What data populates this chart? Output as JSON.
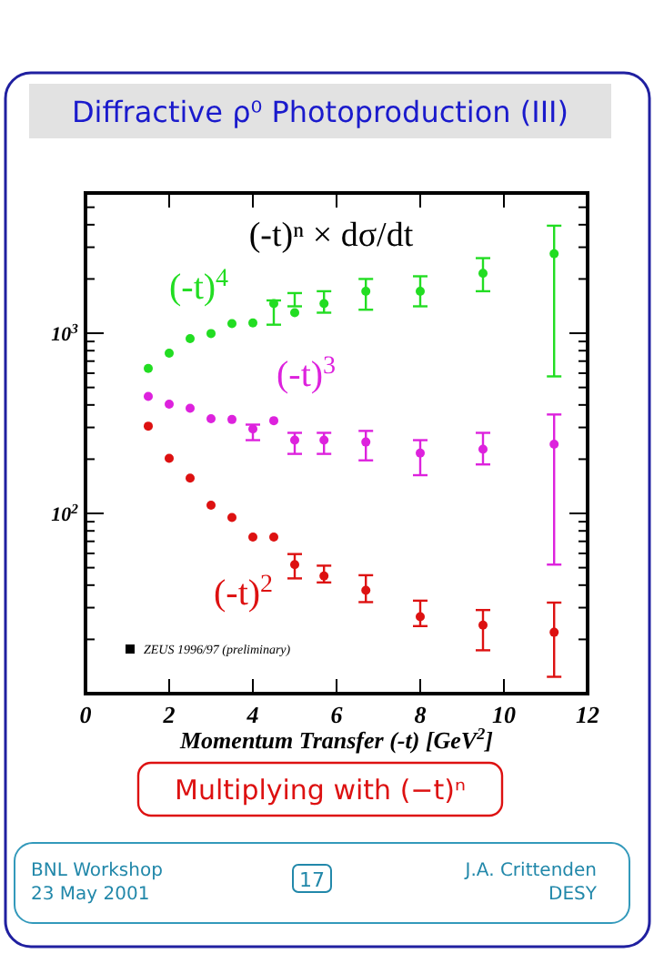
{
  "chart_data": {
    "type": "scatter",
    "title": "Diffractive ρ⁰ Photoproduction (III)",
    "subtitle": "(-t)ⁿ × dσ/dt",
    "xlabel": "Momentum Transfer (-t) [GeV$^{2}$]",
    "x": [
      1.5,
      2.0,
      2.5,
      3.0,
      3.5,
      4.0,
      4.5,
      5.0,
      5.7,
      6.7,
      8.0,
      9.5,
      11.2
    ],
    "series": [
      {
        "name": "(-t)$^{4}$",
        "color": "#22dd22",
        "values": [
          638,
          774,
          933,
          996,
          1130,
          1140,
          1460,
          1300,
          1460,
          1710,
          1710,
          2150,
          2760
        ],
        "errors": [
          null,
          null,
          null,
          null,
          null,
          null,
          [
            1115,
            1520
          ],
          [
            1410,
            1670
          ],
          [
            1300,
            1710
          ],
          [
            1350,
            2000
          ],
          [
            1410,
            2070
          ],
          [
            1710,
            2610
          ],
          [
            576,
            3950
          ]
        ]
      },
      {
        "name": "(-t)$^{3}$",
        "color": "#dd22dd",
        "values": [
          446,
          404,
          383,
          335,
          332,
          294,
          327,
          255,
          255,
          249,
          216,
          227,
          242
        ],
        "errors": [
          null,
          null,
          null,
          null,
          null,
          [
            255,
            311
          ],
          null,
          [
            214,
            280
          ],
          [
            214,
            280
          ],
          [
            197,
            287
          ],
          [
            163,
            255
          ],
          [
            187,
            280
          ],
          [
            52,
            354
          ]
        ]
      },
      {
        "name": "(-t)$^{2}$",
        "color": "#dd1111",
        "values": [
          305,
          202,
          157,
          111,
          95,
          74,
          74,
          52,
          45,
          37.4,
          26.7,
          24,
          21.9
        ],
        "errors": [
          null,
          null,
          null,
          null,
          null,
          null,
          null,
          [
            43.6,
            59.5
          ],
          [
            41.4,
            51.3
          ],
          [
            32.2,
            45.4
          ],
          [
            23.7,
            32.8
          ],
          [
            17.4,
            29.1
          ],
          [
            12.4,
            32
          ]
        ]
      }
    ],
    "marker": "circle",
    "log": "y",
    "xlim": [
      0,
      12
    ],
    "xticks": [
      0,
      2,
      4,
      6,
      8,
      10,
      12
    ],
    "ylim": [
      10,
      6000
    ],
    "yticks": [
      {
        "value": 20,
        "label": null
      },
      {
        "value": 30,
        "label": null
      },
      {
        "value": 40,
        "label": null
      },
      {
        "value": 50,
        "label": null
      },
      {
        "value": 60,
        "label": null
      },
      {
        "value": 70,
        "label": null
      },
      {
        "value": 80,
        "label": null
      },
      {
        "value": 90,
        "label": null
      },
      {
        "value": 100,
        "label": "10$^{2}$"
      },
      {
        "value": 200,
        "label": null
      },
      {
        "value": 300,
        "label": null
      },
      {
        "value": 400,
        "label": null
      },
      {
        "value": 500,
        "label": null
      },
      {
        "value": 600,
        "label": null
      },
      {
        "value": 700,
        "label": null
      },
      {
        "value": 800,
        "label": null
      },
      {
        "value": 900,
        "label": null
      },
      {
        "value": 1000,
        "label": "10$^{3}$"
      },
      {
        "value": 2000,
        "label": null
      },
      {
        "value": 3000,
        "label": null
      },
      {
        "value": 4000,
        "label": null
      },
      {
        "value": 5000,
        "label": null
      }
    ],
    "grid": false,
    "annotations": [
      "ZEUS 1996/97 (preliminary)",
      "Multiplying with (−t)ⁿ",
      "BNL Workshop",
      "23 May 2001",
      "17",
      "J.A. Crittenden",
      "DESY"
    ]
  }
}
